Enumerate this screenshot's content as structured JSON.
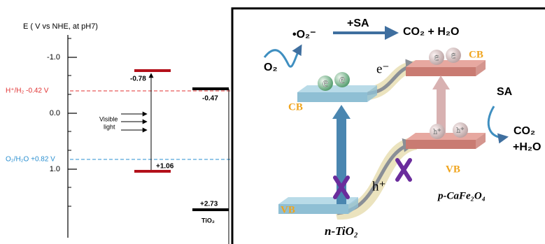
{
  "energy_diagram": {
    "axis_title": "E ( V vs NHE, at pH7)",
    "ticks": [
      "-1.0",
      "0.0",
      "1.0"
    ],
    "reference_levels": [
      "H⁺/H₂ -0.42 V",
      "O₂/H₂O +0.82 V"
    ],
    "band_labels": [
      "-0.78",
      "+1.06",
      "-0.47",
      "+2.73"
    ],
    "light_label": [
      "Visible",
      "light"
    ],
    "material": "TiO₂"
  },
  "schematic": {
    "superoxide": "•O₂⁻",
    "reaction_top": "+SA",
    "products_top": "CO₂ + H₂O",
    "oxygen": "O₂",
    "electron": "e⁻",
    "hole": "h⁺",
    "cb_labels": [
      "CB",
      "CB"
    ],
    "vb_labels": [
      "VB",
      "VB"
    ],
    "electron_particles": [
      "e",
      "e",
      "e",
      "e"
    ],
    "hole_particles": [
      "h⁺",
      "h⁺"
    ],
    "sa": "SA",
    "products_right": [
      "CO₂",
      "+H₂O"
    ],
    "p_material": "p-CaFe₂O₄",
    "n_material": "n-TiO₂"
  }
}
